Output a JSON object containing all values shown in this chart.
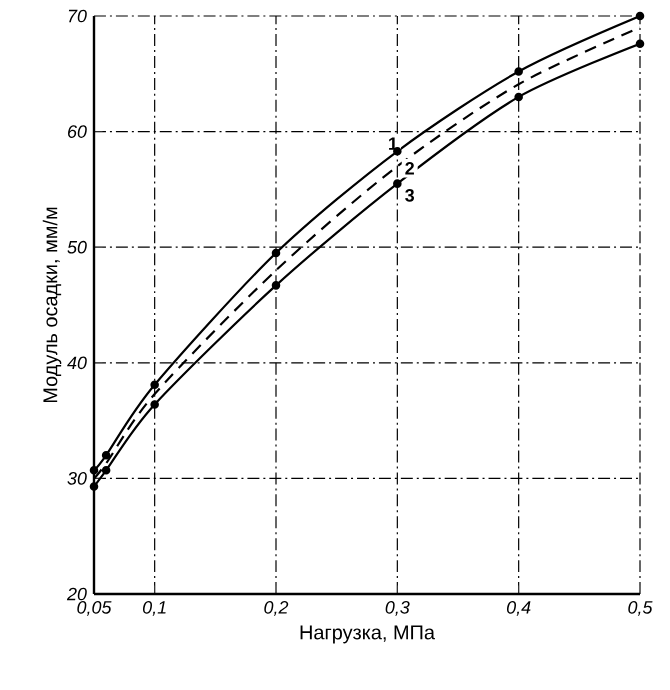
{
  "chart_data": {
    "type": "line",
    "xlabel": "Нагрузка, МПа",
    "ylabel": "Модуль осадки, мм/м",
    "x": [
      0.05,
      0.06,
      0.1,
      0.2,
      0.3,
      0.4,
      0.5
    ],
    "series": [
      {
        "name": "1",
        "color": "#000000",
        "line_style": "solid",
        "marker": "circle",
        "values": [
          30.7,
          32,
          38.1,
          49.5,
          58.3,
          65.2,
          70
        ]
      },
      {
        "name": "2",
        "color": "#000000",
        "line_style": "dashed",
        "marker": "none",
        "values": [
          30,
          31.3,
          37.3,
          48,
          57,
          64.1,
          69
        ]
      },
      {
        "name": "3",
        "color": "#000000",
        "line_style": "solid",
        "marker": "circle",
        "values": [
          29.3,
          30.7,
          36.4,
          46.7,
          55.5,
          63,
          67.6
        ]
      }
    ],
    "xlim": [
      0.05,
      0.5
    ],
    "ylim": [
      20,
      70
    ],
    "xticks": [
      {
        "value": 0.05,
        "label": "0,05"
      },
      {
        "value": 0.1,
        "label": "0,1"
      },
      {
        "value": 0.2,
        "label": "0,2"
      },
      {
        "value": 0.3,
        "label": "0,3"
      },
      {
        "value": 0.4,
        "label": "0,4"
      },
      {
        "value": 0.5,
        "label": "0,5"
      }
    ],
    "yticks": [
      20,
      30,
      40,
      50,
      60,
      70
    ],
    "grid": true
  }
}
